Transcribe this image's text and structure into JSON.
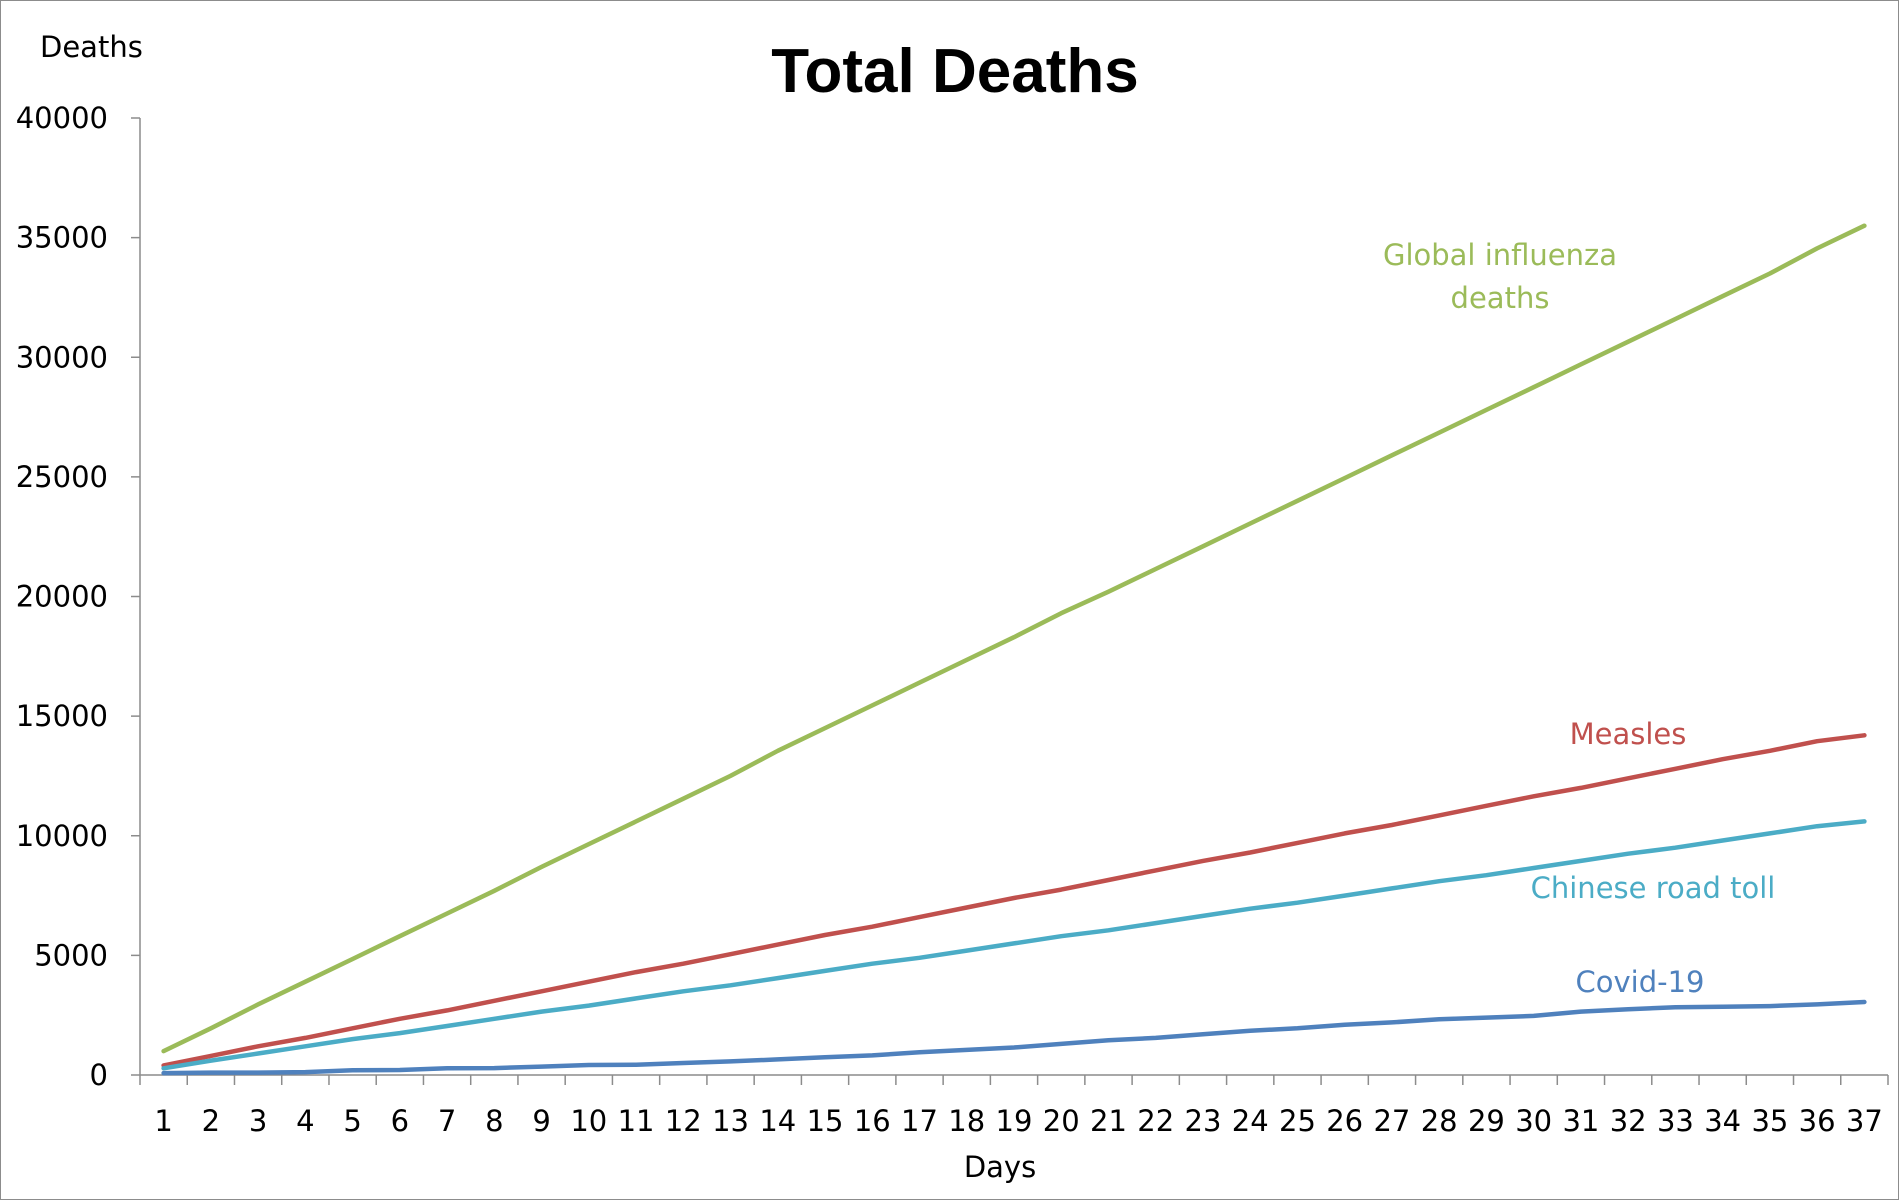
{
  "chart_data": {
    "type": "line",
    "title": "Total Deaths",
    "xlabel": "Days",
    "ylabel": "Deaths",
    "ylim": [
      0,
      40000
    ],
    "yticks": [
      0,
      5000,
      10000,
      15000,
      20000,
      25000,
      30000,
      35000,
      40000
    ],
    "x": [
      1,
      2,
      3,
      4,
      5,
      6,
      7,
      8,
      9,
      10,
      11,
      12,
      13,
      14,
      15,
      16,
      17,
      18,
      19,
      20,
      21,
      22,
      23,
      24,
      25,
      26,
      27,
      28,
      29,
      30,
      31,
      32,
      33,
      34,
      35,
      36,
      37
    ],
    "grid": false,
    "legend": "none",
    "series": [
      {
        "name": "Global influenza deaths",
        "label_lines": [
          "Global influenza",
          "deaths"
        ],
        "color": "#9bbb59",
        "values": [
          1000,
          1950,
          2950,
          3900,
          4850,
          5800,
          6750,
          7700,
          8700,
          9650,
          10600,
          11550,
          12500,
          13550,
          14500,
          15450,
          16400,
          17350,
          18300,
          19300,
          20200,
          21150,
          22100,
          23050,
          24000,
          24950,
          25900,
          26850,
          27800,
          28750,
          29700,
          30650,
          31600,
          32550,
          33500,
          34550,
          35500
        ]
      },
      {
        "name": "Measles",
        "label_lines": [
          "Measles"
        ],
        "color": "#c0504d",
        "values": [
          400,
          800,
          1200,
          1550,
          1950,
          2350,
          2700,
          3100,
          3500,
          3900,
          4300,
          4650,
          5050,
          5450,
          5850,
          6200,
          6600,
          7000,
          7400,
          7750,
          8150,
          8550,
          8950,
          9300,
          9700,
          10100,
          10450,
          10850,
          11250,
          11650,
          12000,
          12400,
          12800,
          13200,
          13550,
          13950,
          14200
        ]
      },
      {
        "name": "Chinese road toll",
        "label_lines": [
          "Chinese road toll"
        ],
        "color": "#4bacc6",
        "values": [
          280,
          600,
          900,
          1200,
          1500,
          1750,
          2050,
          2350,
          2650,
          2900,
          3200,
          3500,
          3750,
          4050,
          4350,
          4650,
          4900,
          5200,
          5500,
          5800,
          6050,
          6350,
          6650,
          6950,
          7200,
          7500,
          7800,
          8100,
          8350,
          8650,
          8950,
          9250,
          9500,
          9800,
          10100,
          10400,
          10600
        ]
      },
      {
        "name": "Covid-19",
        "label_lines": [
          "Covid-19"
        ],
        "color": "#4f81bd",
        "values": [
          80,
          100,
          100,
          120,
          200,
          210,
          280,
          290,
          350,
          420,
          430,
          500,
          570,
          650,
          740,
          820,
          950,
          1050,
          1150,
          1300,
          1450,
          1550,
          1700,
          1850,
          1950,
          2100,
          2200,
          2330,
          2400,
          2470,
          2650,
          2750,
          2830,
          2850,
          2880,
          2950,
          3050
        ]
      }
    ]
  }
}
